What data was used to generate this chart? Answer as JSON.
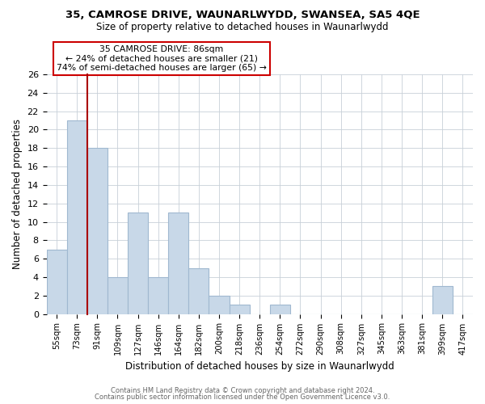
{
  "title1": "35, CAMROSE DRIVE, WAUNARLWYDD, SWANSEA, SA5 4QE",
  "title2": "Size of property relative to detached houses in Waunarlwydd",
  "xlabel": "Distribution of detached houses by size in Waunarlwydd",
  "ylabel": "Number of detached properties",
  "bin_labels": [
    "55sqm",
    "73sqm",
    "91sqm",
    "109sqm",
    "127sqm",
    "146sqm",
    "164sqm",
    "182sqm",
    "200sqm",
    "218sqm",
    "236sqm",
    "254sqm",
    "272sqm",
    "290sqm",
    "308sqm",
    "327sqm",
    "345sqm",
    "363sqm",
    "381sqm",
    "399sqm",
    "417sqm"
  ],
  "bar_values": [
    7,
    21,
    18,
    4,
    11,
    4,
    11,
    5,
    2,
    1,
    0,
    1,
    0,
    0,
    0,
    0,
    0,
    0,
    0,
    3,
    0
  ],
  "bar_color": "#c8d8e8",
  "bar_edge_color": "#a0b8d0",
  "property_line_color": "#aa0000",
  "property_line_index": 1.5,
  "annotation_line1": "35 CAMROSE DRIVE: 86sqm",
  "annotation_line2": "← 24% of detached houses are smaller (21)",
  "annotation_line3": "74% of semi-detached houses are larger (65) →",
  "ylim": [
    0,
    26
  ],
  "yticks": [
    0,
    2,
    4,
    6,
    8,
    10,
    12,
    14,
    16,
    18,
    20,
    22,
    24,
    26
  ],
  "footer1": "Contains HM Land Registry data © Crown copyright and database right 2024.",
  "footer2": "Contains public sector information licensed under the Open Government Licence v3.0.",
  "background_color": "#ffffff",
  "grid_color": "#c8d0d8"
}
